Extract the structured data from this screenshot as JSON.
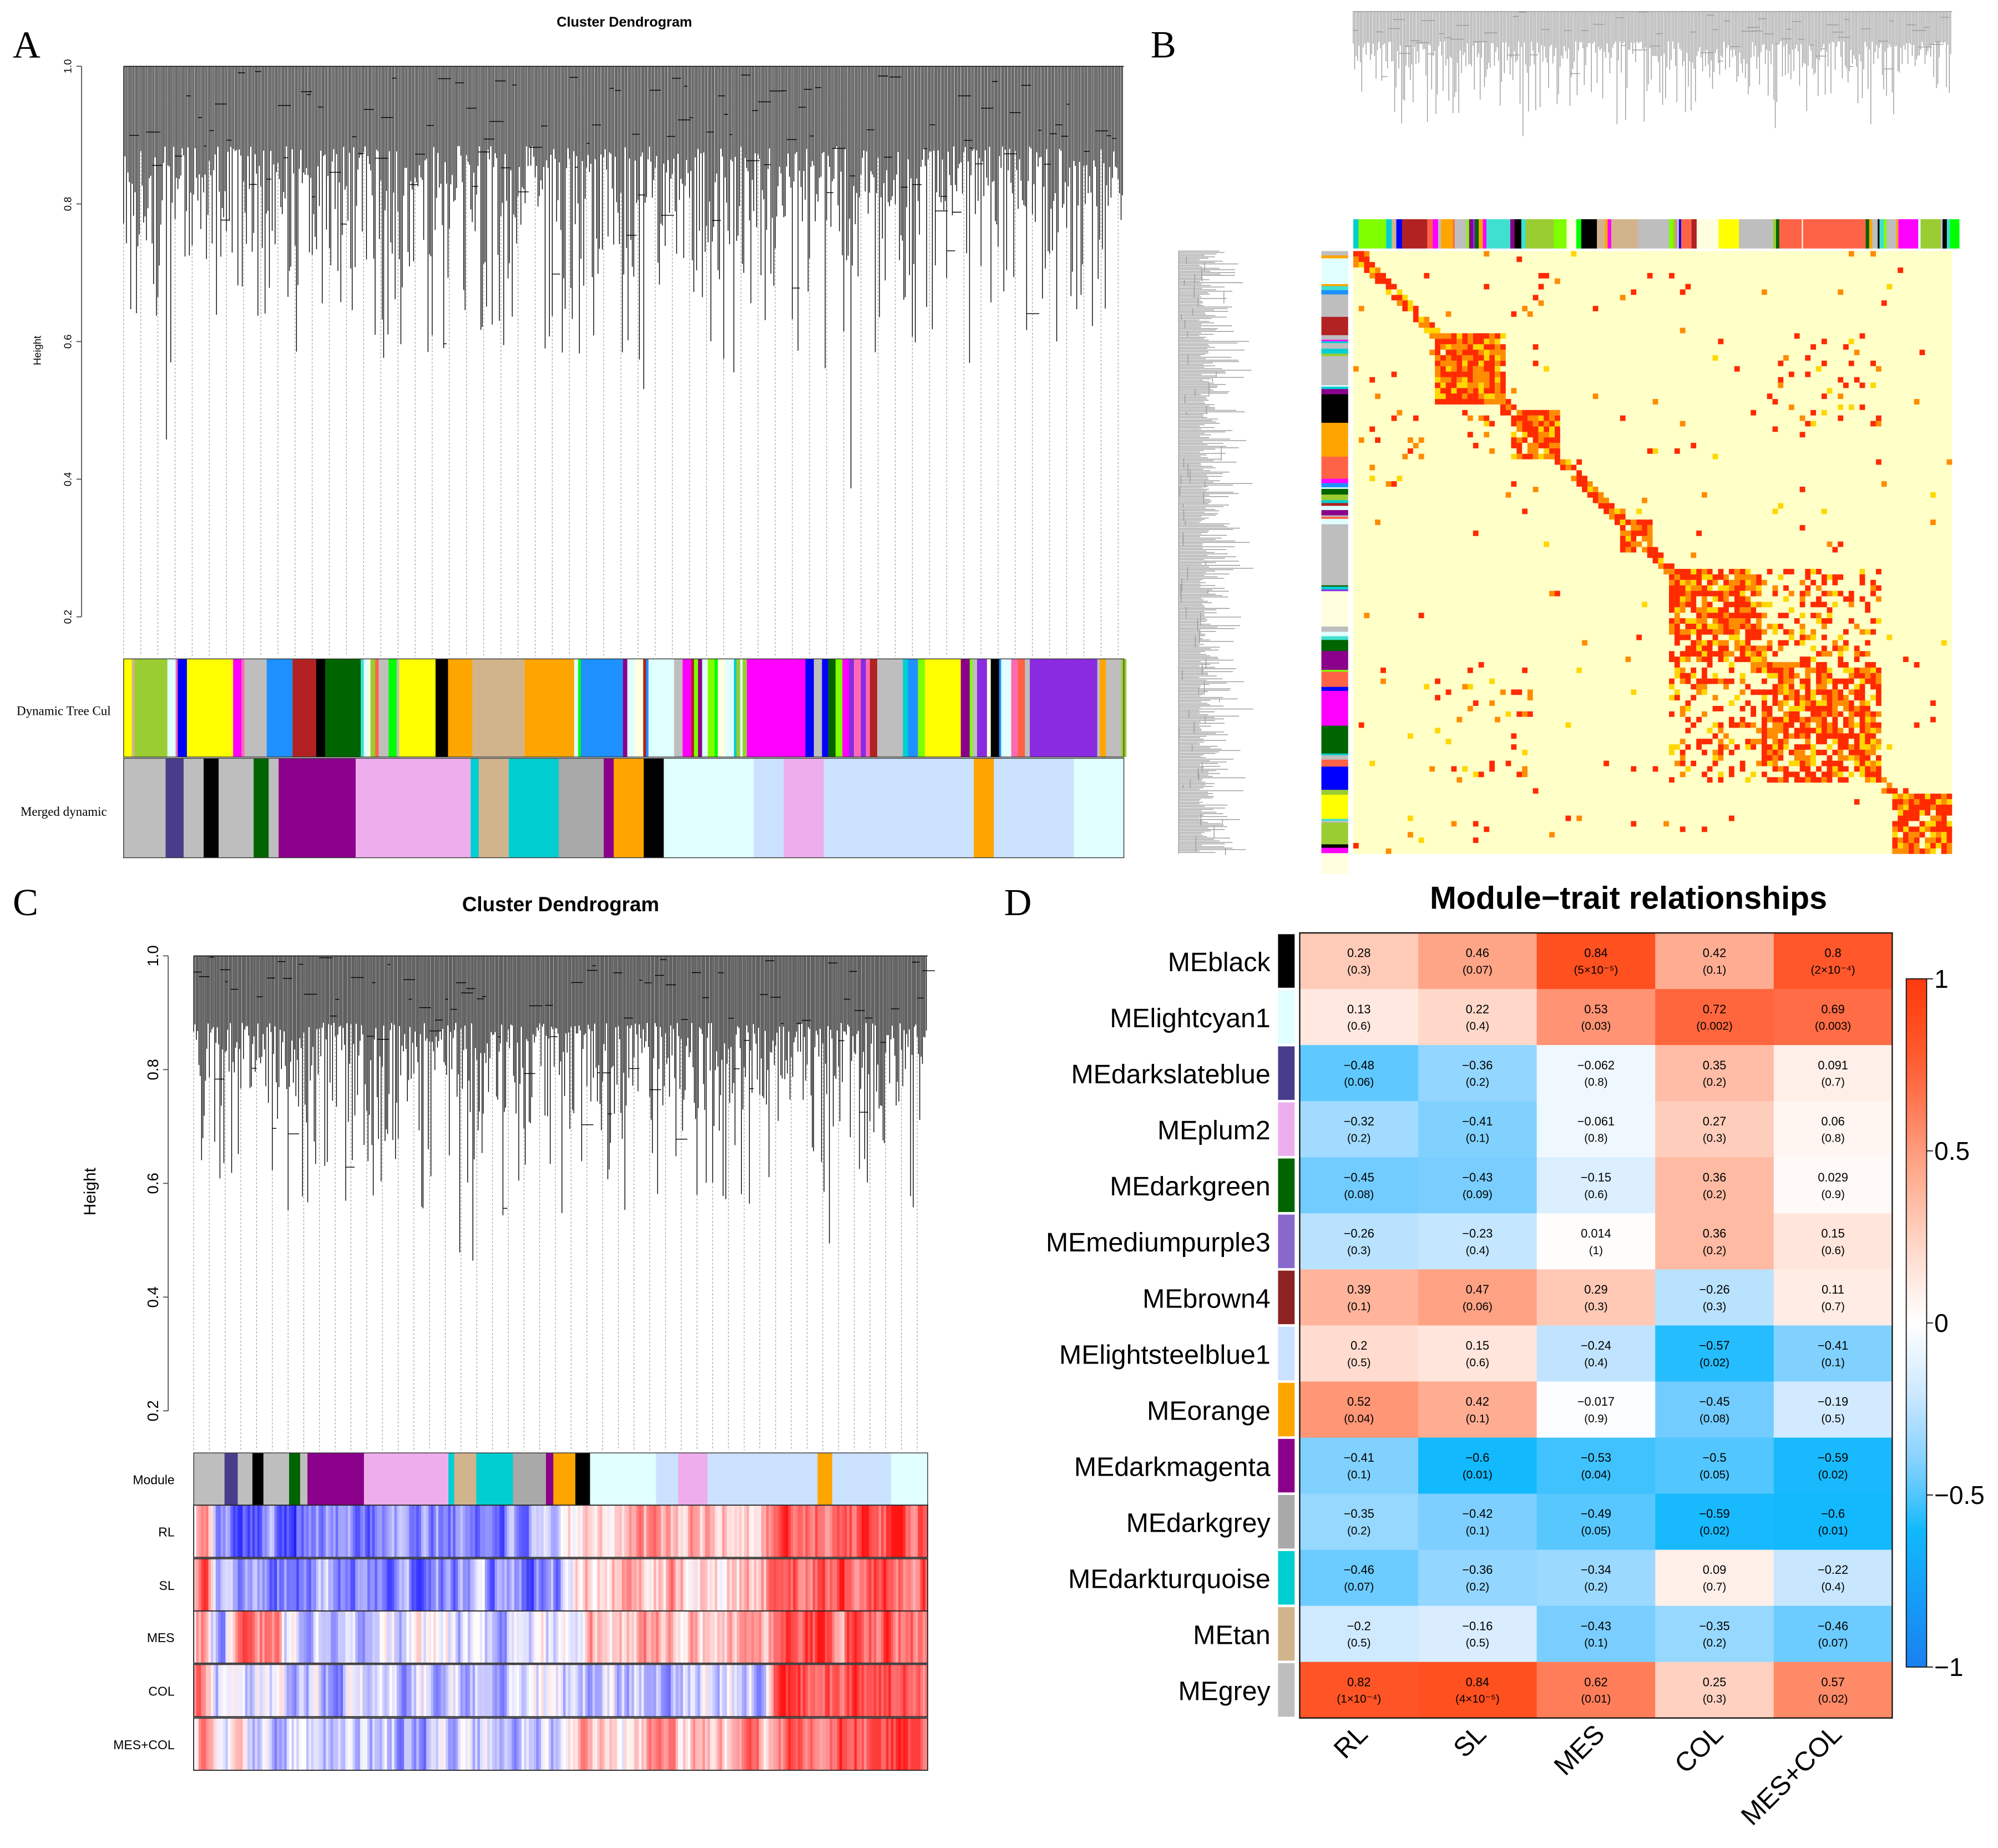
{
  "panels": {
    "a": "A",
    "b": "B",
    "c": "C",
    "d": "D"
  },
  "panel_a": {
    "title": "Cluster Dendrogram",
    "ylabel": "Height",
    "yticks": [
      "1.0",
      "0.8",
      "0.6",
      "0.4",
      "0.2"
    ],
    "row_labels": [
      "Dynamic Tree Cul",
      "Merged dynamic"
    ]
  },
  "panel_c": {
    "title": "Cluster Dendrogram",
    "ylabel": "Height",
    "yticks": [
      "1.0",
      "0.8",
      "0.6",
      "0.4",
      "0.2"
    ],
    "row_labels": [
      "Module",
      "RL",
      "SL",
      "MES",
      "COL",
      "MES+COL"
    ]
  },
  "chart_data": {
    "type": "heatmap",
    "title": "Module−trait relationships",
    "rows": [
      "MEblack",
      "MElightcyan1",
      "MEdarkslateblue",
      "MEplum2",
      "MEdarkgreen",
      "MEmediumpurple3",
      "MEbrown4",
      "MElightsteelblue1",
      "MEorange",
      "MEdarkmagenta",
      "MEdarkgrey",
      "MEdarkturquoise",
      "MEtan",
      "MEgrey"
    ],
    "row_colors": [
      "#000000",
      "#e0ffff",
      "#483d8b",
      "#eeaeee",
      "#006400",
      "#8968cd",
      "#8b2323",
      "#cae1ff",
      "#ffa500",
      "#8b008b",
      "#a9a9a9",
      "#00ced1",
      "#d2b48c",
      "#bebebe"
    ],
    "columns": [
      "RL",
      "SL",
      "MES",
      "COL",
      "MES+COL"
    ],
    "values": [
      [
        0.28,
        0.46,
        0.84,
        0.42,
        0.8
      ],
      [
        0.13,
        0.22,
        0.53,
        0.72,
        0.69
      ],
      [
        -0.48,
        -0.36,
        -0.062,
        0.35,
        0.091
      ],
      [
        -0.32,
        -0.41,
        -0.061,
        0.27,
        0.06
      ],
      [
        -0.45,
        -0.43,
        -0.15,
        0.36,
        0.029
      ],
      [
        -0.26,
        -0.23,
        0.014,
        0.36,
        0.15
      ],
      [
        0.39,
        0.47,
        0.29,
        -0.26,
        0.11
      ],
      [
        0.2,
        0.15,
        -0.24,
        -0.57,
        -0.41
      ],
      [
        0.52,
        0.42,
        -0.017,
        -0.45,
        -0.19
      ],
      [
        -0.41,
        -0.6,
        -0.53,
        -0.5,
        -0.59
      ],
      [
        -0.35,
        -0.42,
        -0.49,
        -0.59,
        -0.6
      ],
      [
        -0.46,
        -0.36,
        -0.34,
        0.09,
        -0.22
      ],
      [
        -0.2,
        -0.16,
        -0.43,
        -0.35,
        -0.46
      ],
      [
        0.82,
        0.84,
        0.62,
        0.25,
        0.57
      ]
    ],
    "pvalues": [
      [
        "(0.3)",
        "(0.07)",
        "(5×10⁻⁵)",
        "(0.1)",
        "(2×10⁻⁴)"
      ],
      [
        "(0.6)",
        "(0.4)",
        "(0.03)",
        "(0.002)",
        "(0.003)"
      ],
      [
        "(0.06)",
        "(0.2)",
        "(0.8)",
        "(0.2)",
        "(0.7)"
      ],
      [
        "(0.2)",
        "(0.1)",
        "(0.8)",
        "(0.3)",
        "(0.8)"
      ],
      [
        "(0.08)",
        "(0.09)",
        "(0.6)",
        "(0.2)",
        "(0.9)"
      ],
      [
        "(0.3)",
        "(0.4)",
        "(1)",
        "(0.2)",
        "(0.6)"
      ],
      [
        "(0.1)",
        "(0.06)",
        "(0.3)",
        "(0.3)",
        "(0.7)"
      ],
      [
        "(0.5)",
        "(0.6)",
        "(0.4)",
        "(0.02)",
        "(0.1)"
      ],
      [
        "(0.04)",
        "(0.1)",
        "(0.9)",
        "(0.08)",
        "(0.5)"
      ],
      [
        "(0.1)",
        "(0.01)",
        "(0.04)",
        "(0.05)",
        "(0.02)"
      ],
      [
        "(0.2)",
        "(0.1)",
        "(0.05)",
        "(0.02)",
        "(0.01)"
      ],
      [
        "(0.07)",
        "(0.2)",
        "(0.2)",
        "(0.7)",
        "(0.4)"
      ],
      [
        "(0.5)",
        "(0.5)",
        "(0.1)",
        "(0.2)",
        "(0.07)"
      ],
      [
        "(1×10⁻⁴)",
        "(4×10⁻⁵)",
        "(0.01)",
        "(0.3)",
        "(0.02)"
      ]
    ],
    "colorbar": {
      "range": [
        -1,
        1
      ],
      "ticks": [
        "1",
        "0.5",
        "0",
        "−0.5",
        "−1"
      ]
    }
  }
}
